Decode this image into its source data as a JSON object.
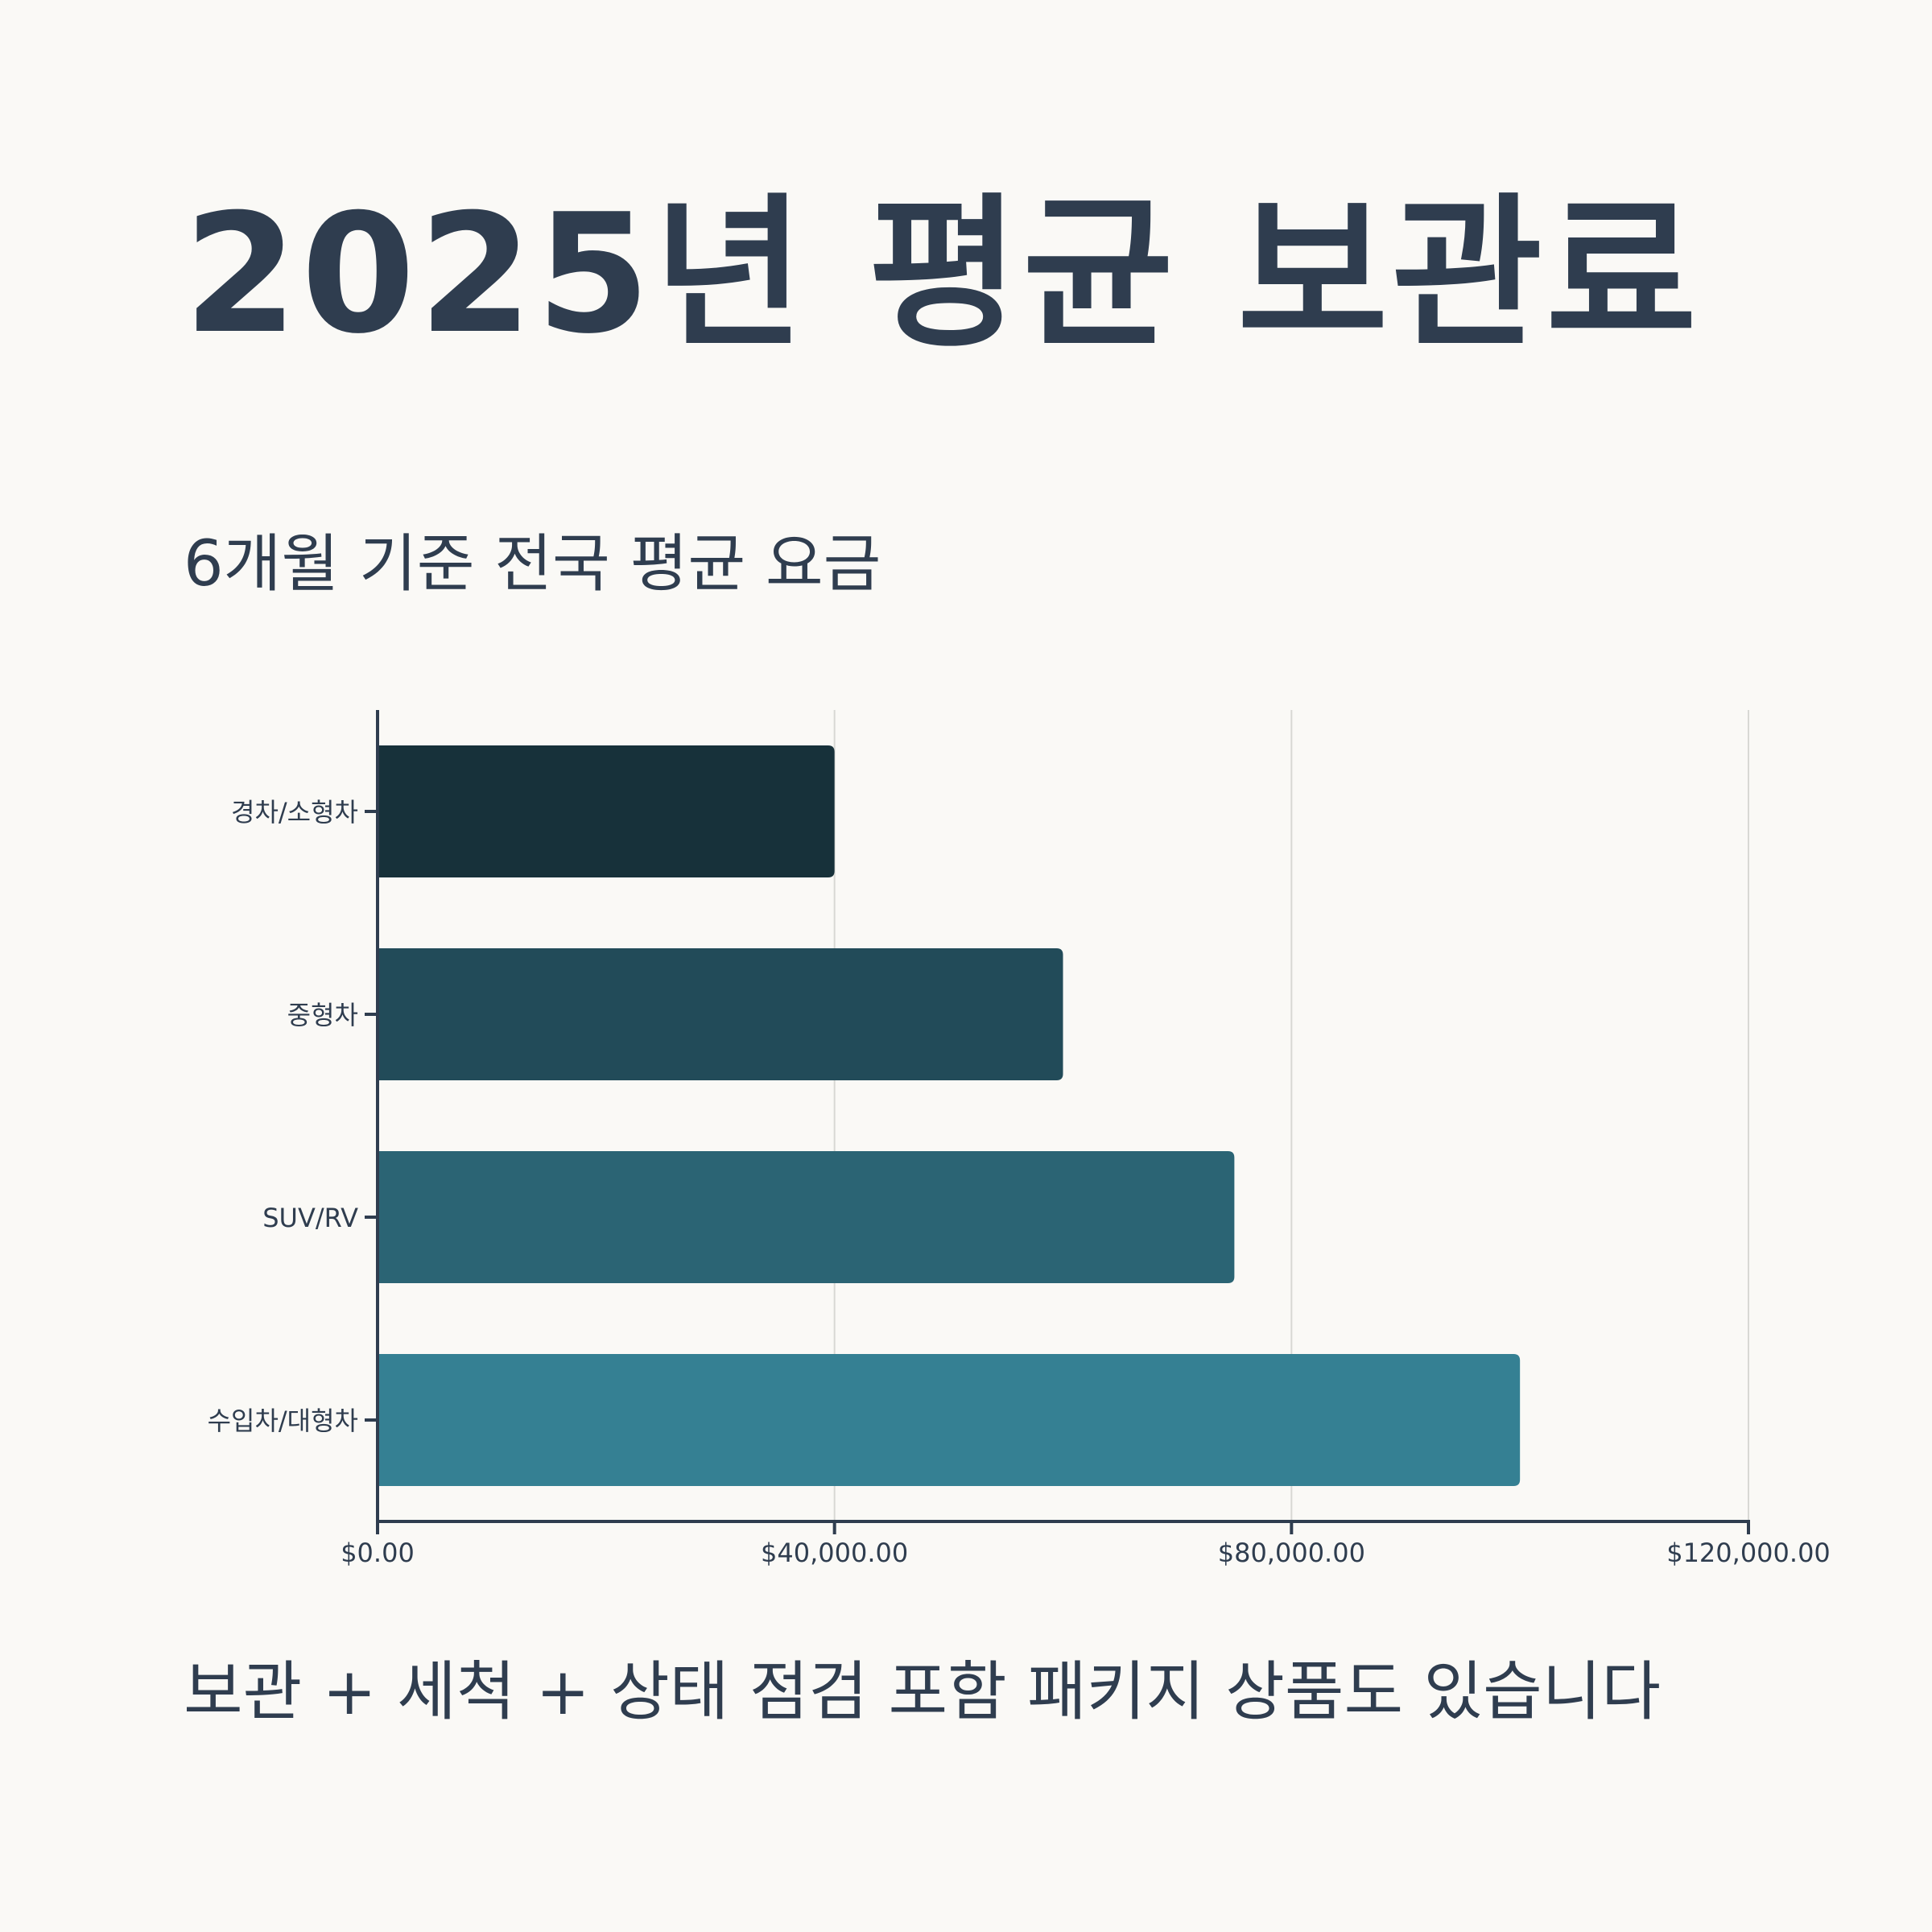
{
  "title": "2025년 평균 보관료",
  "subtitle": "6개월 기준 전국 평균 요금",
  "footer": "보관 + 세척 + 상태 점검 포함 패키지 상품도 있습니다",
  "chart_data": {
    "type": "bar",
    "orientation": "horizontal",
    "categories": [
      "경차/소형차",
      "중형차",
      "SUV/RV",
      "수입차/대형차"
    ],
    "values": [
      40000,
      60000,
      75000,
      100000
    ],
    "bar_colors": [
      "#17313a",
      "#224b59",
      "#2b6474",
      "#358093"
    ],
    "xlim": [
      0,
      120000
    ],
    "x_ticks": [
      0,
      40000,
      80000,
      120000
    ],
    "x_tick_labels": [
      "$0.00",
      "$40,000.00",
      "$80,000.00",
      "$120,000.00"
    ],
    "grid": "vertical",
    "axis_color": "#2f3d4f",
    "grid_color": "#d8d8d4"
  }
}
